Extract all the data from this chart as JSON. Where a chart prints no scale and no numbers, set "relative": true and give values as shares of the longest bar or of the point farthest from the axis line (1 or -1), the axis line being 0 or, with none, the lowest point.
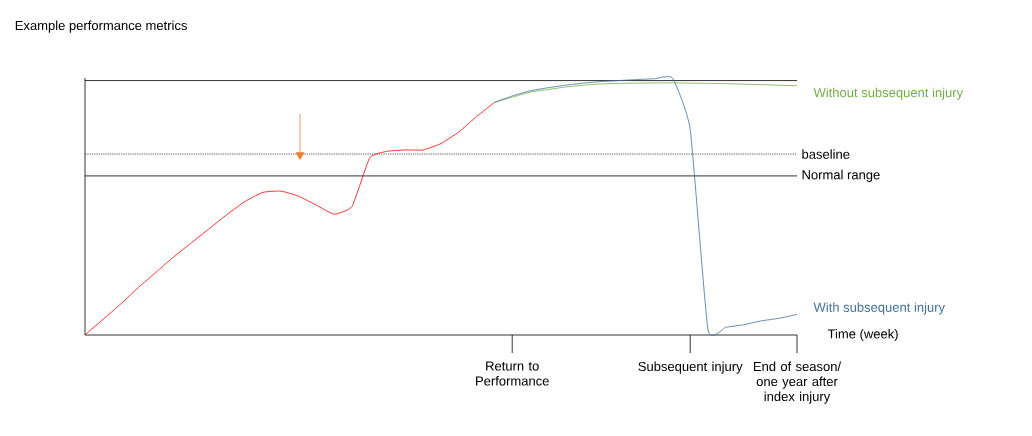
{
  "chart_data": {
    "type": "line",
    "relative": true,
    "ylabel": "Example performance metrics",
    "xlabel": "Time (week)",
    "categories": [
      null,
      null,
      null,
      null,
      null,
      null,
      null,
      null,
      null,
      null,
      null,
      null,
      null,
      null,
      null,
      null,
      null,
      null,
      null,
      null,
      null,
      null,
      null,
      null,
      "Return to Performance",
      null,
      null,
      null,
      null,
      null,
      null,
      null,
      null,
      null,
      "Subsequent injury",
      null,
      null,
      null,
      null,
      null,
      "End of season/ one year after index injury"
    ],
    "tick_labels": "x",
    "series": [
      {
        "color": "#ff0000",
        "values": [
          0,
          0.06,
          0.12,
          0.185,
          0.245,
          0.305,
          0.36,
          0.415,
          0.47,
          0.52,
          0.555,
          0.56,
          0.54,
          0.505,
          0.47,
          0.5,
          0.69,
          0.715,
          0.72,
          0.72,
          0.745,
          0.79,
          0.85,
          0.905,
          null,
          null,
          null,
          null,
          null,
          null,
          null,
          null,
          null,
          null,
          null,
          null,
          null,
          null,
          null,
          null,
          null
        ]
      },
      {
        "name": "Without subsequent injury",
        "color": "#70ad47",
        "values": [
          null,
          null,
          null,
          null,
          null,
          null,
          null,
          null,
          null,
          null,
          null,
          null,
          null,
          null,
          null,
          null,
          null,
          null,
          null,
          null,
          null,
          null,
          null,
          0.905,
          0.925,
          0.945,
          0.955,
          0.965,
          0.972,
          0.977,
          0.979,
          0.98,
          0.981,
          0.981,
          0.98,
          0.979,
          0.978,
          0.976,
          0.974,
          0.972,
          0.97
        ]
      },
      {
        "name": "With subsequent injury",
        "color": "#41719c",
        "values": [
          null,
          null,
          null,
          null,
          null,
          null,
          null,
          null,
          null,
          null,
          null,
          null,
          null,
          null,
          null,
          null,
          null,
          null,
          null,
          null,
          null,
          null,
          null,
          0.905,
          0.93,
          0.95,
          0.962,
          0.972,
          0.98,
          0.986,
          0.99,
          0.994,
          0.997,
          1,
          0.8,
          0.02,
          0.03,
          0.04,
          0.055,
          0.065,
          0.08
        ]
      }
    ],
    "ref_lines": [
      {
        "axis": "y",
        "value": 0.99,
        "color": "#000000"
      },
      {
        "axis": "y",
        "value": 0.704,
        "label": "baseline",
        "color": "#000000",
        "line_style": "dotted"
      },
      {
        "axis": "y",
        "value": 0.619,
        "label": "Normal range",
        "color": "#000000"
      }
    ]
  }
}
